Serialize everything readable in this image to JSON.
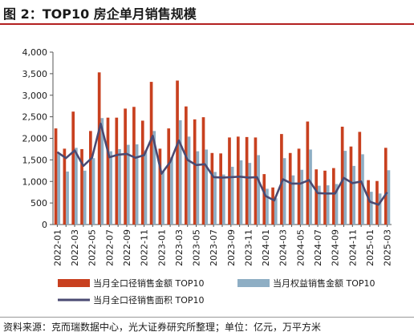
{
  "figure_title": "图 2：TOP10 房企单月销售规模",
  "source_note": "资料来源：克而瑞数据中心，光大证券研究所整理；单位：亿元，万平方米",
  "colors": {
    "accent_rule": "#b32020",
    "sales_amount": "#c8401f",
    "equity_sales": "#8eaec4",
    "sales_area": "#4a4a72"
  },
  "chart_data": {
    "type": "bar",
    "title": "",
    "xlabel": "",
    "ylabel": "",
    "ylim": [
      0,
      4000
    ],
    "yticks": [
      "0",
      "500",
      "1,000",
      "1,500",
      "2,000",
      "2,500",
      "3,000",
      "3,500",
      "4,000"
    ],
    "grid": false,
    "legend_position": "bottom",
    "x_tick_labels": [
      "2022-01",
      "2022-03",
      "2022-05",
      "2022-07",
      "2022-09",
      "2022-11",
      "2023-01",
      "2023-03",
      "2023-05",
      "2023-07",
      "2023-09",
      "2023-11",
      "2024-01",
      "2024-03",
      "2024-05",
      "2024-07",
      "2024-09",
      "2024-11",
      "2025-01",
      "2025-03"
    ],
    "categories": [
      "2022-01",
      "2022-02",
      "2022-03",
      "2022-04",
      "2022-05",
      "2022-06",
      "2022-07",
      "2022-08",
      "2022-09",
      "2022-10",
      "2022-11",
      "2022-12",
      "2023-01",
      "2023-02",
      "2023-03",
      "2023-04",
      "2023-05",
      "2023-06",
      "2023-07",
      "2023-08",
      "2023-09",
      "2023-10",
      "2023-11",
      "2023-12",
      "2024-01",
      "2024-02",
      "2024-03",
      "2024-04",
      "2024-05",
      "2024-06",
      "2024-07",
      "2024-08",
      "2024-09",
      "2024-10",
      "2024-11",
      "2024-12",
      "2025-01",
      "2025-02",
      "2025-03"
    ],
    "series": [
      {
        "name": "当月全口径销售金额 TOP10",
        "kind": "bar",
        "values": [
          2230,
          1760,
          2620,
          1750,
          2170,
          3530,
          2480,
          2480,
          2690,
          2730,
          2410,
          3310,
          1760,
          2230,
          3340,
          2740,
          2440,
          2490,
          1660,
          1650,
          2020,
          2040,
          2030,
          2020,
          1170,
          860,
          2100,
          1660,
          1760,
          2390,
          1280,
          1250,
          1310,
          2270,
          1810,
          2150,
          1030,
          1010,
          1780
        ]
      },
      {
        "name": "当月权益销售金额 TOP10",
        "kind": "bar",
        "values": [
          1650,
          1230,
          1780,
          1250,
          1540,
          2470,
          1700,
          1750,
          1850,
          1860,
          1720,
          2170,
          1230,
          1560,
          2420,
          2040,
          1700,
          1740,
          1220,
          1160,
          1340,
          1490,
          1430,
          1610,
          830,
          610,
          1540,
          1140,
          1270,
          1740,
          900,
          910,
          940,
          1710,
          1360,
          1630,
          760,
          720,
          1260
        ]
      },
      {
        "name": "当月全口径销售面积 TOP10",
        "kind": "line",
        "values": [
          1680,
          1540,
          1720,
          1360,
          1550,
          2340,
          1560,
          1620,
          1640,
          1550,
          1610,
          2060,
          1180,
          1450,
          1950,
          1500,
          1380,
          1400,
          1100,
          1090,
          1100,
          1110,
          1090,
          1100,
          660,
          560,
          1050,
          950,
          950,
          1030,
          730,
          720,
          720,
          1080,
          960,
          1000,
          530,
          460,
          750
        ]
      }
    ]
  }
}
